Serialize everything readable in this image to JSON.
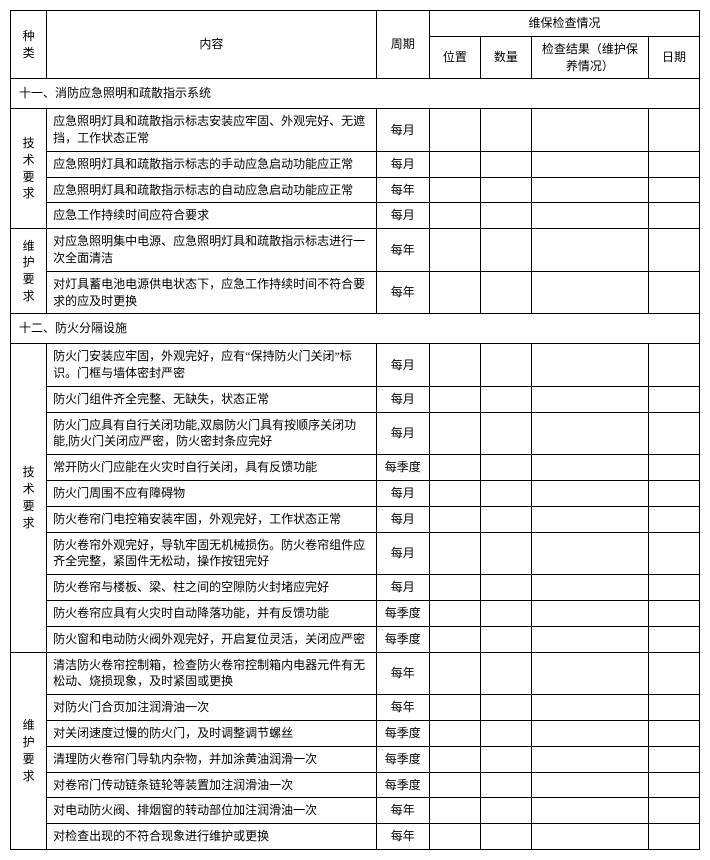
{
  "header": {
    "type": "种类",
    "content": "内容",
    "cycle": "周期",
    "inspection_group": "维保检查情况",
    "position": "位置",
    "quantity": "数量",
    "result": "检查结果（维护保养情况）",
    "date": "日期"
  },
  "sections": [
    {
      "title": "十一、消防应急照明和疏散指示系统",
      "groups": [
        {
          "label": "技术要求",
          "rows": [
            {
              "content": "应急照明灯具和疏散指示标志安装应牢固、外观完好、无遮挡，工作状态正常",
              "cycle": "每月"
            },
            {
              "content": "应急照明灯具和疏散指示标志的手动应急启动功能应正常",
              "cycle": "每月"
            },
            {
              "content": "应急照明灯具和疏散指示标志的自动应急启动功能应正常",
              "cycle": "每年"
            },
            {
              "content": "应急工作持续时间应符合要求",
              "cycle": "每月"
            }
          ]
        },
        {
          "label": "维护要求",
          "rows": [
            {
              "content": "对应急照明集中电源、应急照明灯具和疏散指示标志进行一次全面清洁",
              "cycle": "每年"
            },
            {
              "content": "对灯具蓄电池电源供电状态下，应急工作持续时间不符合要求的应及时更换",
              "cycle": "每年"
            }
          ]
        }
      ]
    },
    {
      "title": "十二、防火分隔设施",
      "groups": [
        {
          "label": "技术要求",
          "rows": [
            {
              "content": "防火门安装应牢固，外观完好，应有“保持防火门关闭”标识。门框与墙体密封严密",
              "cycle": "每月"
            },
            {
              "content": "防火门组件齐全完整、无缺失，状态正常",
              "cycle": "每月"
            },
            {
              "content": "防火门应具有自行关闭功能,双扇防火门具有按顺序关闭功能,防火门关闭应严密，防火密封条应完好",
              "cycle": "每月"
            },
            {
              "content": "常开防火门应能在火灾时自行关闭，具有反馈功能",
              "cycle": "每季度"
            },
            {
              "content": "防火门周围不应有障碍物",
              "cycle": "每月"
            },
            {
              "content": "防火卷帘门电控箱安装牢固，外观完好，工作状态正常",
              "cycle": "每月"
            },
            {
              "content": "防火卷帘外观完好，导轨牢固无机械损伤。防火卷帘组件应齐全完整，紧固件无松动，操作按钮完好",
              "cycle": "每月"
            },
            {
              "content": "防火卷帘与楼板、梁、柱之间的空隙防火封堵应完好",
              "cycle": "每月"
            },
            {
              "content": "防火卷帘应具有火灾时自动降落功能，并有反馈功能",
              "cycle": "每季度"
            },
            {
              "content": "防火窗和电动防火阀外观完好，开启复位灵活，关闭应严密",
              "cycle": "每季度"
            }
          ]
        },
        {
          "label": "维护要求",
          "rows": [
            {
              "content": "清洁防火卷帘控制箱，检查防火卷帘控制箱内电器元件有无松动、烧损现象，及时紧固或更换",
              "cycle": "每年"
            },
            {
              "content": "对防火门合页加注润滑油一次",
              "cycle": "每年"
            },
            {
              "content": "对关闭速度过慢的防火门，及时调整调节螺丝",
              "cycle": "每季度"
            },
            {
              "content": "清理防火卷帘门导轨内杂物，并加涂黄油润滑一次",
              "cycle": "每季度"
            },
            {
              "content": "对卷帘门传动链条链轮等装置加注润滑油一次",
              "cycle": "每季度"
            },
            {
              "content": "对电动防火阀、排烟窗的转动部位加注润滑油一次",
              "cycle": "每年"
            },
            {
              "content": "对检查出现的不符合现象进行维护或更换",
              "cycle": "每年"
            }
          ]
        }
      ]
    }
  ]
}
